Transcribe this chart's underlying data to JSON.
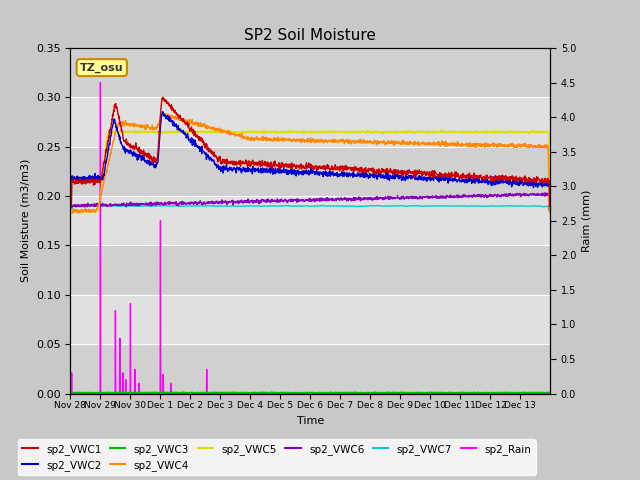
{
  "title": "SP2 Soil Moisture",
  "xlabel": "Time",
  "ylabel_left": "Soil Moisture (m3/m3)",
  "ylabel_right": "Raim (mm)",
  "ylim_left": [
    0,
    0.35
  ],
  "ylim_right": [
    0,
    5.0
  ],
  "yticks_left": [
    0.0,
    0.05,
    0.1,
    0.15,
    0.2,
    0.25,
    0.3,
    0.35
  ],
  "yticks_right": [
    0.0,
    0.5,
    1.0,
    1.5,
    2.0,
    2.5,
    3.0,
    3.5,
    4.0,
    4.5,
    5.0
  ],
  "xtick_labels": [
    "Nov 28",
    "Nov 29",
    "Nov 30",
    "Dec 1",
    "Dec 2",
    "Dec 3",
    "Dec 4",
    "Dec 5",
    "Dec 6",
    "Dec 7",
    "Dec 8",
    "Dec 9",
    "Dec 10",
    "Dec 11",
    "Dec 12",
    "Dec 13"
  ],
  "n_days": 16,
  "colors": {
    "sp2_VWC1": "#cc0000",
    "sp2_VWC2": "#0000cc",
    "sp2_VWC3": "#00bb00",
    "sp2_VWC4": "#ff8800",
    "sp2_VWC5": "#dddd00",
    "sp2_VWC6": "#8800bb",
    "sp2_VWC7": "#00cccc",
    "sp2_Rain": "#ff00ff"
  },
  "band_colors": [
    "#d0d0d0",
    "#e0e0e0"
  ],
  "fig_bg": "#c8c8c8",
  "annotation_text": "TZ_osu",
  "annotation_bg": "#ffff99",
  "annotation_border": "#cc8800"
}
